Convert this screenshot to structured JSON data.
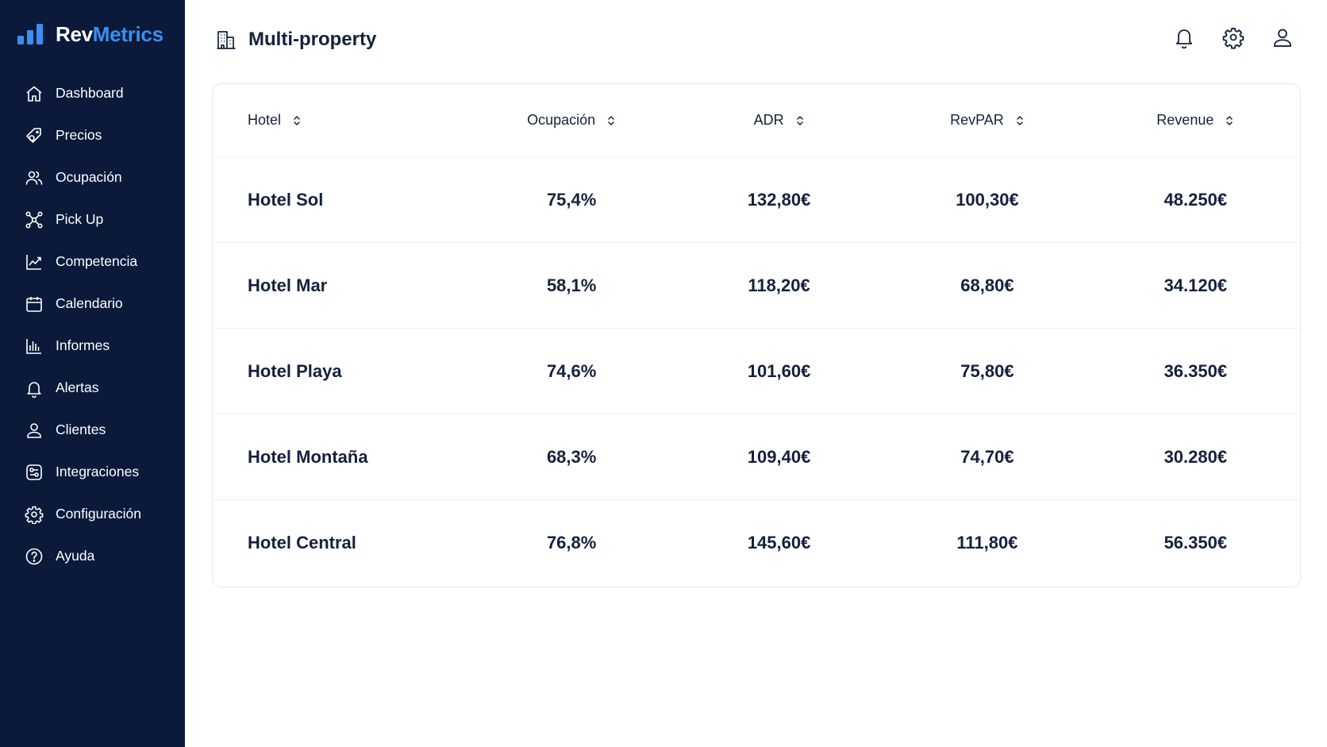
{
  "brand": {
    "name_part1": "Rev",
    "name_part2": "Metrics",
    "accent": "#3a8ff0",
    "sidebar_bg": "#0b1a3a"
  },
  "sidebar": {
    "items": [
      {
        "label": "Dashboard",
        "icon": "home-icon"
      },
      {
        "label": "Precios",
        "icon": "tag-icon"
      },
      {
        "label": "Ocupación",
        "icon": "users-icon"
      },
      {
        "label": "Pick Up",
        "icon": "network-icon"
      },
      {
        "label": "Competencia",
        "icon": "line-chart-icon"
      },
      {
        "label": "Calendario",
        "icon": "calendar-icon"
      },
      {
        "label": "Informes",
        "icon": "bar-chart-icon"
      },
      {
        "label": "Alertas",
        "icon": "bell-icon"
      },
      {
        "label": "Clientes",
        "icon": "user-icon"
      },
      {
        "label": "Integraciones",
        "icon": "integrations-icon"
      },
      {
        "label": "Configuración",
        "icon": "gear-icon"
      },
      {
        "label": "Ayuda",
        "icon": "help-icon"
      }
    ]
  },
  "header": {
    "title": "Multi-property",
    "title_icon": "building-icon",
    "actions": [
      "bell-icon",
      "gear-icon",
      "user-icon"
    ]
  },
  "table": {
    "columns": [
      "Hotel",
      "Ocupación",
      "ADR",
      "RevPAR",
      "Revenue"
    ],
    "rows": [
      [
        "Hotel Sol",
        "75,4%",
        "132,80€",
        "100,30€",
        "48.250€"
      ],
      [
        "Hotel Mar",
        "58,1%",
        "118,20€",
        "68,80€",
        "34.120€"
      ],
      [
        "Hotel Playa",
        "74,6%",
        "101,60€",
        "75,80€",
        "36.350€"
      ],
      [
        "Hotel Montaña",
        "68,3%",
        "109,40€",
        "74,70€",
        "30.280€"
      ],
      [
        "Hotel Central",
        "76,8%",
        "145,60€",
        "111,80€",
        "56.350€"
      ]
    ]
  }
}
